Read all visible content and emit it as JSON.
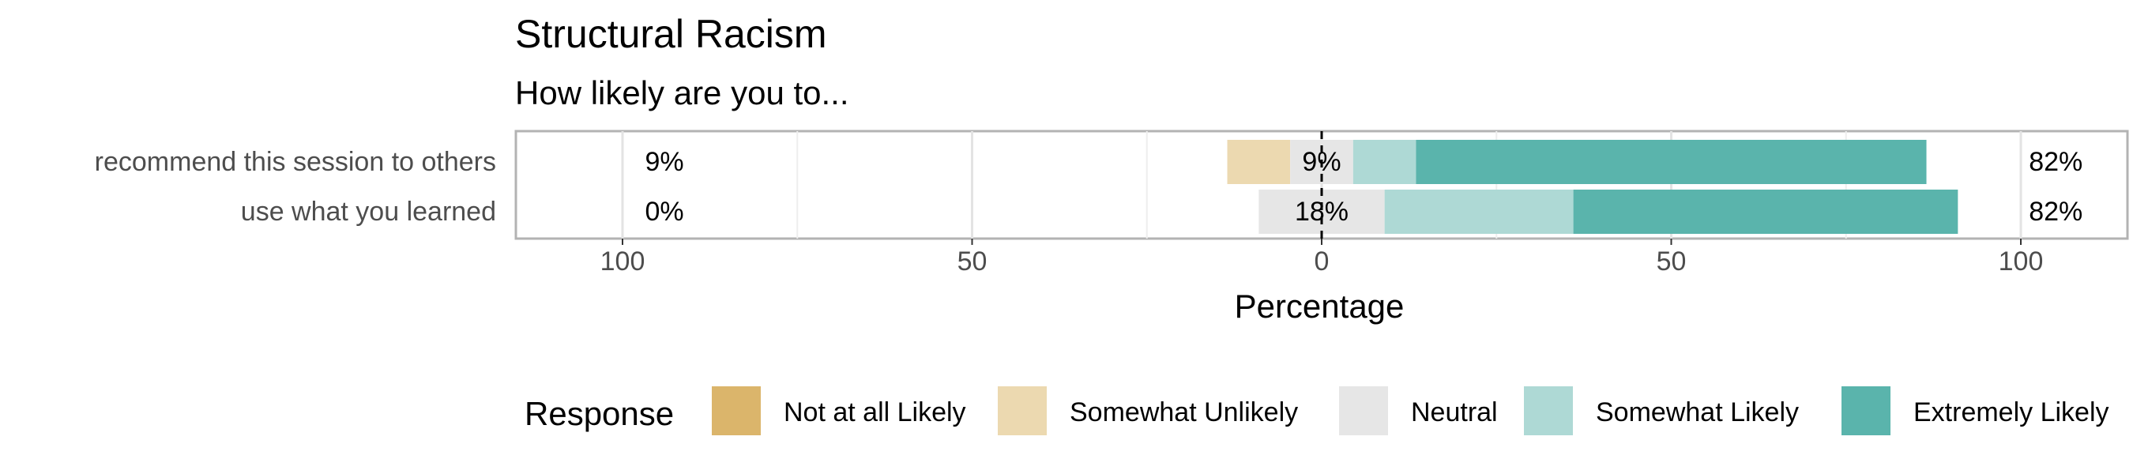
{
  "chart_data": {
    "type": "bar",
    "title": "Structural Racism",
    "subtitle": "How likely are you to...",
    "xlabel": "Percentage",
    "ylabel": "",
    "xlim": [
      -100,
      100
    ],
    "xticks": [
      -100,
      -50,
      0,
      50,
      100
    ],
    "xtick_labels": [
      "100",
      "50",
      "0",
      "50",
      "100"
    ],
    "categories": [
      "recommend this session to others",
      "use what you learned"
    ],
    "series": [
      {
        "name": "Not at all Likely",
        "color": "#dbb56b",
        "values": [
          0,
          0
        ]
      },
      {
        "name": "Somewhat Unlikely",
        "color": "#ecd9b0",
        "values": [
          9,
          0
        ]
      },
      {
        "name": "Neutral",
        "color": "#e6e6e6",
        "values": [
          9,
          18
        ]
      },
      {
        "name": "Somewhat Likely",
        "color": "#aed9d5",
        "values": [
          9,
          27
        ]
      },
      {
        "name": "Extremely Likely",
        "color": "#5ab4ac",
        "values": [
          73,
          55
        ]
      }
    ],
    "left_labels": [
      "9%",
      "0%"
    ],
    "center_labels": [
      "9%",
      "18%"
    ],
    "right_labels": [
      "82%",
      "82%"
    ],
    "legend": {
      "title": "Response",
      "position": "bottom"
    },
    "grid": true
  }
}
